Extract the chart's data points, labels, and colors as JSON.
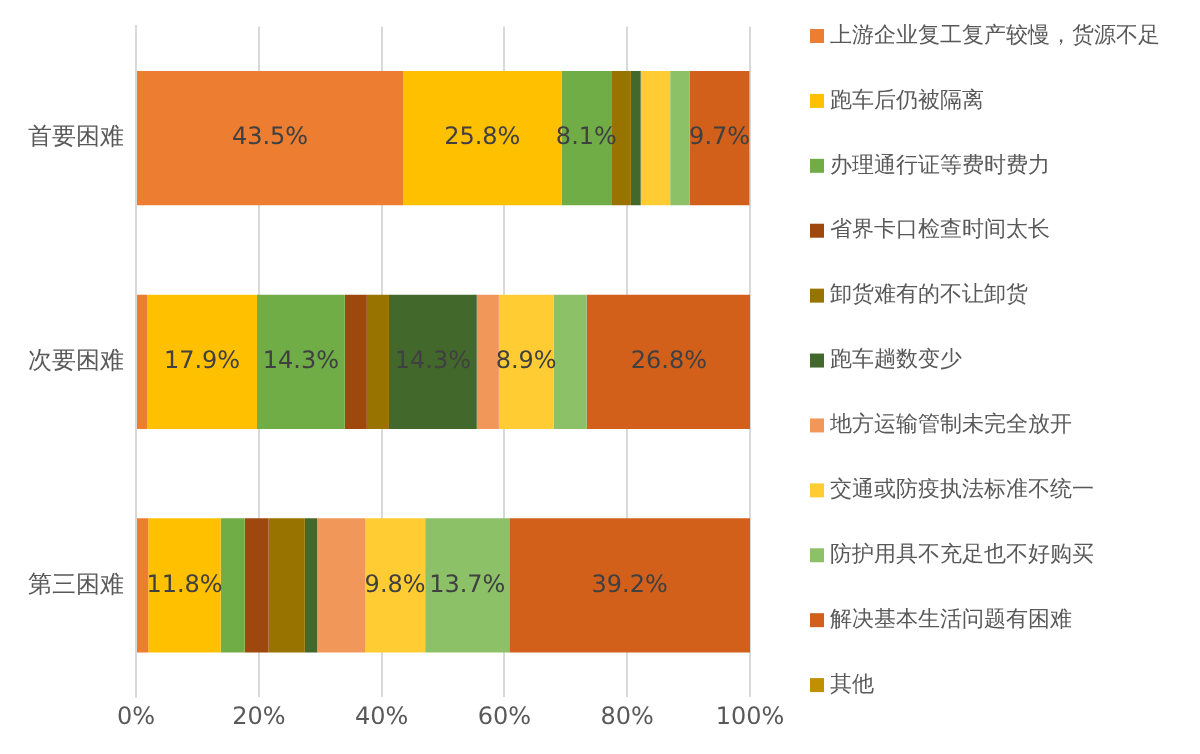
{
  "chart_data": {
    "type": "bar",
    "orientation": "horizontal",
    "stacked": true,
    "categories": [
      "首要困难",
      "次要困难",
      "第三困难"
    ],
    "xlim": [
      0,
      100
    ],
    "xticks": [
      {
        "value": 0,
        "label": "0%"
      },
      {
        "value": 20,
        "label": "20%"
      },
      {
        "value": 40,
        "label": "40%"
      },
      {
        "value": 60,
        "label": "60%"
      },
      {
        "value": 80,
        "label": "80%"
      },
      {
        "value": 100,
        "label": "100%"
      }
    ],
    "grid": "x",
    "legend": "right",
    "series": [
      {
        "name": "上游企业复工复产较慢，货源不足",
        "color": "#ed7d31",
        "values": [
          43.5,
          1.8,
          2.0
        ],
        "value_labels": [
          "43.5%",
          null,
          null
        ]
      },
      {
        "name": "跑车后仍被隔离",
        "color": "#ffc000",
        "values": [
          25.8,
          17.9,
          11.8
        ],
        "value_labels": [
          "25.8%",
          "17.9%",
          "11.8%"
        ]
      },
      {
        "name": "办理通行证等费时费力",
        "color": "#70ad47",
        "values": [
          8.1,
          14.3,
          3.9
        ],
        "value_labels": [
          "8.1%",
          "14.3%",
          null
        ]
      },
      {
        "name": "省界卡口检查时间太长",
        "color": "#9e480e",
        "values": [
          0,
          3.6,
          3.9
        ],
        "value_labels": [
          null,
          null,
          null
        ]
      },
      {
        "name": "卸货难有的不让卸货",
        "color": "#997300",
        "values": [
          3.2,
          3.6,
          5.9
        ],
        "value_labels": [
          null,
          null,
          null
        ]
      },
      {
        "name": "跑车趟数变少",
        "color": "#43682b",
        "values": [
          1.6,
          14.3,
          2.0
        ],
        "value_labels": [
          null,
          "14.3%",
          null
        ]
      },
      {
        "name": "地方运输管制未完全放开",
        "color": "#f1975a",
        "values": [
          0,
          3.6,
          7.8
        ],
        "value_labels": [
          null,
          null,
          null
        ]
      },
      {
        "name": "交通或防疫执法标准不统一",
        "color": "#ffcd33",
        "values": [
          4.8,
          8.9,
          9.8
        ],
        "value_labels": [
          null,
          "8.9%",
          "9.8%"
        ]
      },
      {
        "name": "防护用具不充足也不好购买",
        "color": "#8cc168",
        "values": [
          3.2,
          5.4,
          13.7
        ],
        "value_labels": [
          null,
          null,
          "13.7%"
        ]
      },
      {
        "name": "解决基本生活问题有困难",
        "color": "#d2601a",
        "values": [
          9.7,
          26.8,
          39.2
        ],
        "value_labels": [
          "9.7%",
          "26.8%",
          "39.2%"
        ]
      },
      {
        "name": "其他",
        "color": "#bf9000",
        "values": [
          0,
          0,
          0
        ],
        "value_labels": [
          null,
          null,
          null
        ]
      }
    ]
  }
}
